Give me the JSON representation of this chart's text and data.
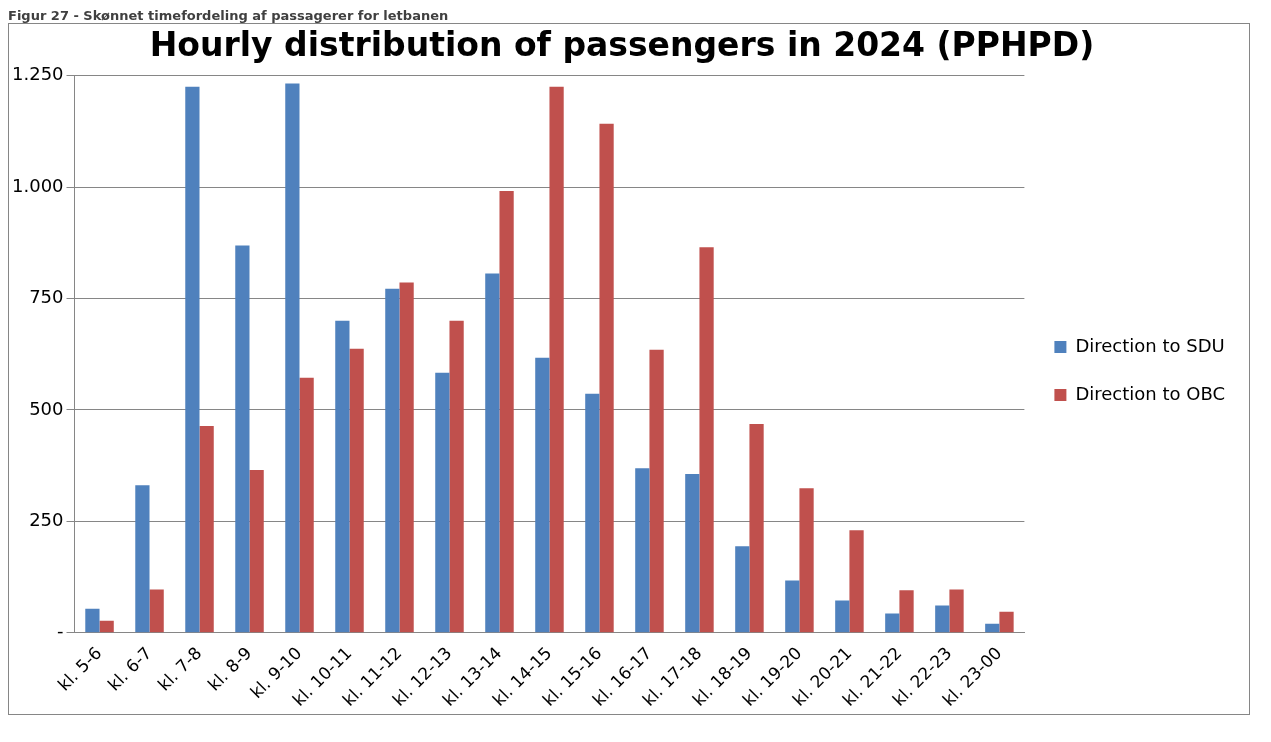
{
  "chart_data": {
    "type": "bar",
    "title": "Hourly distribution of passengers in 2024 (PPHPD)",
    "annotations": [
      "Figur 27 - Skønnet timefordeling af passagerer for letbanen"
    ],
    "categories": [
      "kl. 5-6",
      "kl. 6-7",
      "kl. 7-8",
      "kl. 8-9",
      "kl. 9-10",
      "kl. 10-11",
      "kl. 11-12",
      "kl. 12-13",
      "kl. 13-14",
      "kl. 14-15",
      "kl. 15-16",
      "kl. 16-17",
      "kl. 17-18",
      "kl. 18-19",
      "kl. 19-20",
      "kl. 20-21",
      "kl. 21-22",
      "kl. 22-23",
      "kl. 23-00"
    ],
    "series": [
      {
        "name": "Direction to SDU",
        "color": "#4f81bd",
        "values": [
          54,
          331,
          1225,
          869,
          1232,
          700,
          772,
          583,
          806,
          617,
          536,
          369,
          356,
          194,
          117,
          72,
          43,
          61,
          20
        ]
      },
      {
        "name": "Direction to OBC",
        "color": "#c0504d",
        "values": [
          27,
          97,
          464,
          365,
          572,
          637,
          786,
          700,
          991,
          1225,
          1142,
          635,
          865,
          468,
          324,
          230,
          95,
          97,
          47
        ]
      }
    ],
    "ylim": [
      0,
      1250
    ],
    "yticks": [
      {
        "value": 0,
        "label": "-"
      },
      {
        "value": 250,
        "label": "250"
      },
      {
        "value": 500,
        "label": "500"
      },
      {
        "value": 750,
        "label": "750"
      },
      {
        "value": 1000,
        "label": "1.000"
      },
      {
        "value": 1250,
        "label": "1.250"
      }
    ],
    "grid": "y",
    "legend": "right"
  }
}
